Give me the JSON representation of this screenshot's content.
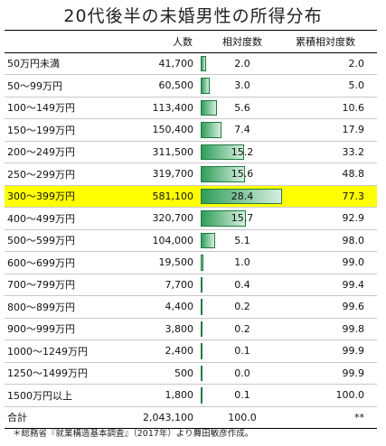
{
  "title": "20代後半の未婚男性の所得分布",
  "headers": {
    "label": "",
    "count": "人数",
    "relative": "相対度数",
    "cumulative": "累積相対度数"
  },
  "highlight_color": "#ffff00",
  "bar_color": "#2f9e5a",
  "rows": [
    {
      "label": "50万円未満",
      "count": "41,700",
      "relative": "2.0",
      "cumulative": "2.0"
    },
    {
      "label": "50～99万円",
      "count": "60,500",
      "relative": "3.0",
      "cumulative": "5.0"
    },
    {
      "label": "100～149万円",
      "count": "113,400",
      "relative": "5.6",
      "cumulative": "10.6"
    },
    {
      "label": "150～199万円",
      "count": "150,400",
      "relative": "7.4",
      "cumulative": "17.9"
    },
    {
      "label": "200～249万円",
      "count": "311,500",
      "relative": "15.2",
      "cumulative": "33.2"
    },
    {
      "label": "250～299万円",
      "count": "319,700",
      "relative": "15.6",
      "cumulative": "48.8"
    },
    {
      "label": "300～399万円",
      "count": "581,100",
      "relative": "28.4",
      "cumulative": "77.3",
      "highlight": true
    },
    {
      "label": "400～499万円",
      "count": "320,700",
      "relative": "15.7",
      "cumulative": "92.9"
    },
    {
      "label": "500～599万円",
      "count": "104,000",
      "relative": "5.1",
      "cumulative": "98.0"
    },
    {
      "label": "600～699万円",
      "count": "19,500",
      "relative": "1.0",
      "cumulative": "99.0"
    },
    {
      "label": "700～799万円",
      "count": "7,700",
      "relative": "0.4",
      "cumulative": "99.4"
    },
    {
      "label": "800～899万円",
      "count": "4,400",
      "relative": "0.2",
      "cumulative": "99.6"
    },
    {
      "label": "900～999万円",
      "count": "3,800",
      "relative": "0.2",
      "cumulative": "99.8"
    },
    {
      "label": "1000～1249万円",
      "count": "2,400",
      "relative": "0.1",
      "cumulative": "99.9"
    },
    {
      "label": "1250～1499万円",
      "count": "500",
      "relative": "0.0",
      "cumulative": "99.9"
    },
    {
      "label": "1500万円以上",
      "count": "1,800",
      "relative": "0.1",
      "cumulative": "100.0"
    }
  ],
  "total": {
    "label": "合計",
    "count": "2,043,100",
    "relative": "100.0",
    "cumulative": "**"
  },
  "note": "＊総務省『就業構造基本調査』（2017年）より舞田敏彦作成。",
  "chart_data": {
    "type": "table",
    "title": "20代後半の未婚男性の所得分布",
    "columns": [
      "",
      "人数",
      "相対度数",
      "累積相対度数"
    ],
    "categories": [
      "50万円未満",
      "50～99万円",
      "100～149万円",
      "150～199万円",
      "200～249万円",
      "250～299万円",
      "300～399万円",
      "400～499万円",
      "500～599万円",
      "600～699万円",
      "700～799万円",
      "800～899万円",
      "900～999万円",
      "1000～1249万円",
      "1250～1499万円",
      "1500万円以上"
    ],
    "series": [
      {
        "name": "人数",
        "values": [
          41700,
          60500,
          113400,
          150400,
          311500,
          319700,
          581100,
          320700,
          104000,
          19500,
          7700,
          4400,
          3800,
          2400,
          500,
          1800
        ]
      },
      {
        "name": "相対度数",
        "values": [
          2.0,
          3.0,
          5.6,
          7.4,
          15.2,
          15.6,
          28.4,
          15.7,
          5.1,
          1.0,
          0.4,
          0.2,
          0.2,
          0.1,
          0.0,
          0.1
        ]
      },
      {
        "name": "累積相対度数",
        "values": [
          2.0,
          5.0,
          10.6,
          17.9,
          33.2,
          48.8,
          77.3,
          92.9,
          98.0,
          99.0,
          99.4,
          99.6,
          99.8,
          99.9,
          99.9,
          100.0
        ]
      }
    ],
    "total": {
      "人数": 2043100,
      "相対度数": 100.0,
      "累積相対度数": "**"
    },
    "highlighted_category": "300～399万円",
    "bar_max": 28.4
  }
}
